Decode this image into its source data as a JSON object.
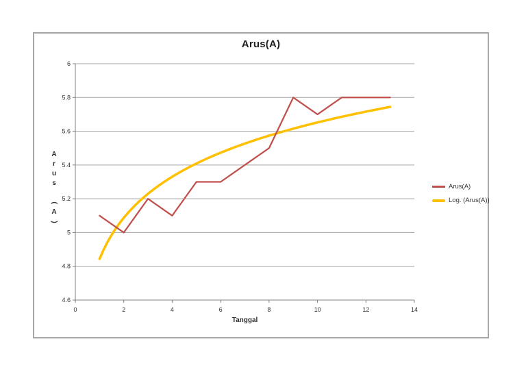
{
  "chart_data": {
    "type": "line",
    "title": "Arus(A)",
    "xlabel": "Tanggal",
    "ylabel": "Arus (A)",
    "xlim": [
      0,
      14
    ],
    "ylim": [
      4.6,
      6
    ],
    "x_tick_values": [
      0,
      2,
      4,
      6,
      8,
      10,
      12,
      14
    ],
    "x_tick_labels": [
      "0",
      "2",
      "4",
      "6",
      "8",
      "10",
      "12",
      "14"
    ],
    "y_tick_values": [
      6,
      5.8,
      5.6,
      5.4,
      5.2,
      5,
      4.8,
      4.6
    ],
    "y_tick_labels": [
      "6",
      "5.8",
      "5.6",
      "5.4",
      "5.2",
      "5",
      "4.8",
      "4.6"
    ],
    "grid": "horizontal-gridlines-on",
    "legend_position": "right",
    "x": [
      1,
      2,
      3,
      4,
      5,
      6,
      7,
      8,
      9,
      10,
      11,
      12,
      13
    ],
    "series": [
      {
        "name": "Arus(A)",
        "color": "#C0504D",
        "values": [
          5.1,
          5.0,
          5.2,
          5.1,
          5.3,
          5.3,
          5.4,
          5.5,
          5.8,
          5.7,
          5.8,
          5.8,
          5.8
        ]
      }
    ],
    "trendline": {
      "name": "Log. (Arus(A))",
      "type": "logarithmic",
      "color": "#FFC000",
      "intercept_a": 4.844,
      "coefficient_b": 0.351,
      "x_range": [
        1,
        13
      ],
      "y_start": 4.84,
      "y_end": 5.74
    }
  },
  "colors": {
    "series_red": "#C0504D",
    "trendline_yellow": "#FFC000",
    "gridline": "#a3a3a3",
    "axis_line": "#808080",
    "tick_text": "#333333",
    "chart_border": "#a6a6a6",
    "background": "#FFFFFF"
  }
}
